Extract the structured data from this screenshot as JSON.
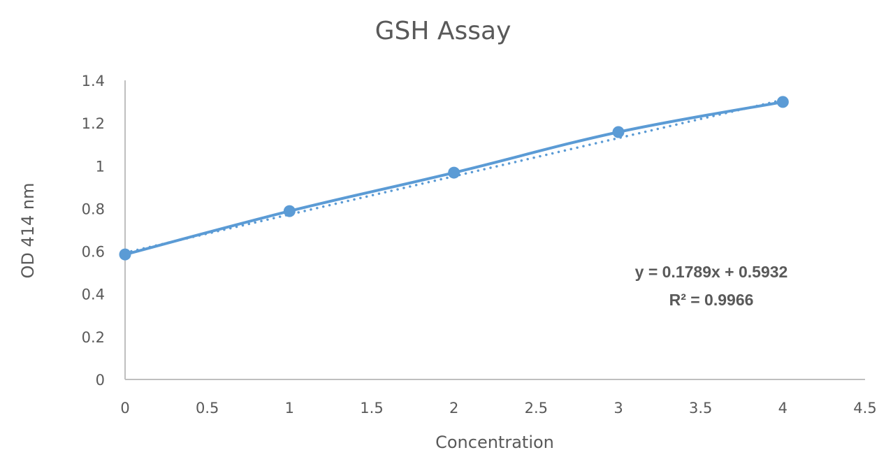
{
  "chart_data": {
    "type": "scatter",
    "title": "GSH Assay",
    "xlabel": "Concentration",
    "ylabel": "OD 414 nm",
    "xlim": [
      0,
      4.5
    ],
    "ylim": [
      0,
      1.4
    ],
    "x_ticks": [
      "0",
      "0.5",
      "1",
      "1.5",
      "2",
      "2.5",
      "3",
      "3.5",
      "4",
      "4.5"
    ],
    "y_ticks": [
      "0",
      "0.2",
      "0.4",
      "0.6",
      "0.8",
      "1",
      "1.2",
      "1.4"
    ],
    "grid": false,
    "legend": null,
    "series": [
      {
        "name": "OD 414 nm",
        "style": "scatter with smooth lines and markers",
        "color": "#5B9BD5",
        "x": [
          0,
          1,
          2,
          3,
          4
        ],
        "y": [
          0.585,
          0.788,
          0.968,
          1.158,
          1.299
        ]
      }
    ],
    "trendline": {
      "type": "linear",
      "style": "dotted",
      "color": "#5B9BD5",
      "slope": 0.1789,
      "intercept": 0.5932,
      "r_squared": 0.9966,
      "equation_label": "y = 0.1789x + 0.5932",
      "r2_label": "R² = 0.9966"
    }
  },
  "colors": {
    "series": "#5B9BD5",
    "axis": "#BFBFBF",
    "text": "#595959"
  }
}
